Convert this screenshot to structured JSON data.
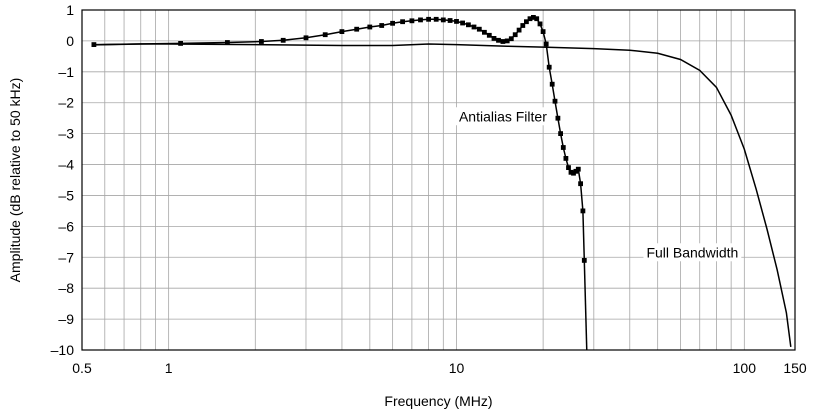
{
  "chart_data": {
    "type": "line",
    "xlabel": "Frequency (MHz)",
    "ylabel": "Amplitude (dB relative to 50 kHz)",
    "x_scale": "log",
    "xlim": [
      0.5,
      150
    ],
    "ylim": [
      -10,
      1
    ],
    "grid": true,
    "x_ticks": [
      {
        "value": 0.5,
        "label": "0.5"
      },
      {
        "value": 1,
        "label": "1"
      },
      {
        "value": 10,
        "label": "10"
      },
      {
        "value": 100,
        "label": "100"
      },
      {
        "value": 150,
        "label": "150"
      }
    ],
    "y_ticks": [
      {
        "value": 1,
        "label": "1"
      },
      {
        "value": 0,
        "label": "0"
      },
      {
        "value": -1,
        "label": "–1"
      },
      {
        "value": -2,
        "label": "–2"
      },
      {
        "value": -3,
        "label": "–3"
      },
      {
        "value": -4,
        "label": "–4"
      },
      {
        "value": -5,
        "label": "–5"
      },
      {
        "value": -6,
        "label": "–6"
      },
      {
        "value": -7,
        "label": "–7"
      },
      {
        "value": -8,
        "label": "–8"
      },
      {
        "value": -9,
        "label": "–9"
      },
      {
        "value": -10,
        "label": "–10"
      }
    ],
    "series": [
      {
        "name": "Full Bandwidth",
        "markers": false,
        "x": [
          0.55,
          0.8,
          1,
          2,
          4,
          6,
          8,
          10,
          15,
          20,
          30,
          40,
          50,
          60,
          70,
          80,
          90,
          100,
          110,
          120,
          130,
          140,
          145
        ],
        "y": [
          -0.13,
          -0.1,
          -0.1,
          -0.12,
          -0.15,
          -0.15,
          -0.1,
          -0.12,
          -0.17,
          -0.2,
          -0.25,
          -0.3,
          -0.4,
          -0.6,
          -0.95,
          -1.5,
          -2.4,
          -3.5,
          -4.8,
          -6.1,
          -7.4,
          -8.8,
          -9.9
        ]
      },
      {
        "name": "Antialias Filter",
        "markers": true,
        "x": [
          0.55,
          1.1,
          1.6,
          2.1,
          2.5,
          3,
          3.5,
          4,
          4.5,
          5,
          5.5,
          6,
          6.5,
          7,
          7.5,
          8,
          8.5,
          9,
          9.5,
          10,
          10.5,
          11,
          11.5,
          12,
          12.5,
          13,
          13.5,
          14,
          14.5,
          15,
          15.5,
          16,
          16.5,
          17,
          17.5,
          18,
          18.5,
          19,
          19.5,
          20,
          20.5,
          21,
          21.5,
          22,
          22.5,
          23,
          23.5,
          24,
          24.5,
          25,
          25.5,
          26,
          26.5,
          27,
          27.5,
          27.8
        ],
        "y": [
          -0.12,
          -0.08,
          -0.05,
          -0.02,
          0.02,
          0.1,
          0.2,
          0.3,
          0.38,
          0.45,
          0.5,
          0.57,
          0.62,
          0.65,
          0.68,
          0.7,
          0.7,
          0.68,
          0.66,
          0.63,
          0.58,
          0.52,
          0.45,
          0.38,
          0.28,
          0.18,
          0.08,
          0.02,
          -0.02,
          0.0,
          0.07,
          0.2,
          0.35,
          0.5,
          0.62,
          0.72,
          0.76,
          0.72,
          0.55,
          0.3,
          -0.1,
          -0.85,
          -1.4,
          -1.95,
          -2.5,
          -3.0,
          -3.45,
          -3.8,
          -4.1,
          -4.25,
          -4.28,
          -4.22,
          -4.15,
          -4.62,
          -5.5,
          -7.1
        ]
      }
    ],
    "annotations": [
      {
        "text": "Antialias Filter",
        "x": 14.5,
        "y": -2.6
      },
      {
        "text": "Full Bandwidth",
        "x": 66,
        "y": -7.0
      }
    ]
  }
}
